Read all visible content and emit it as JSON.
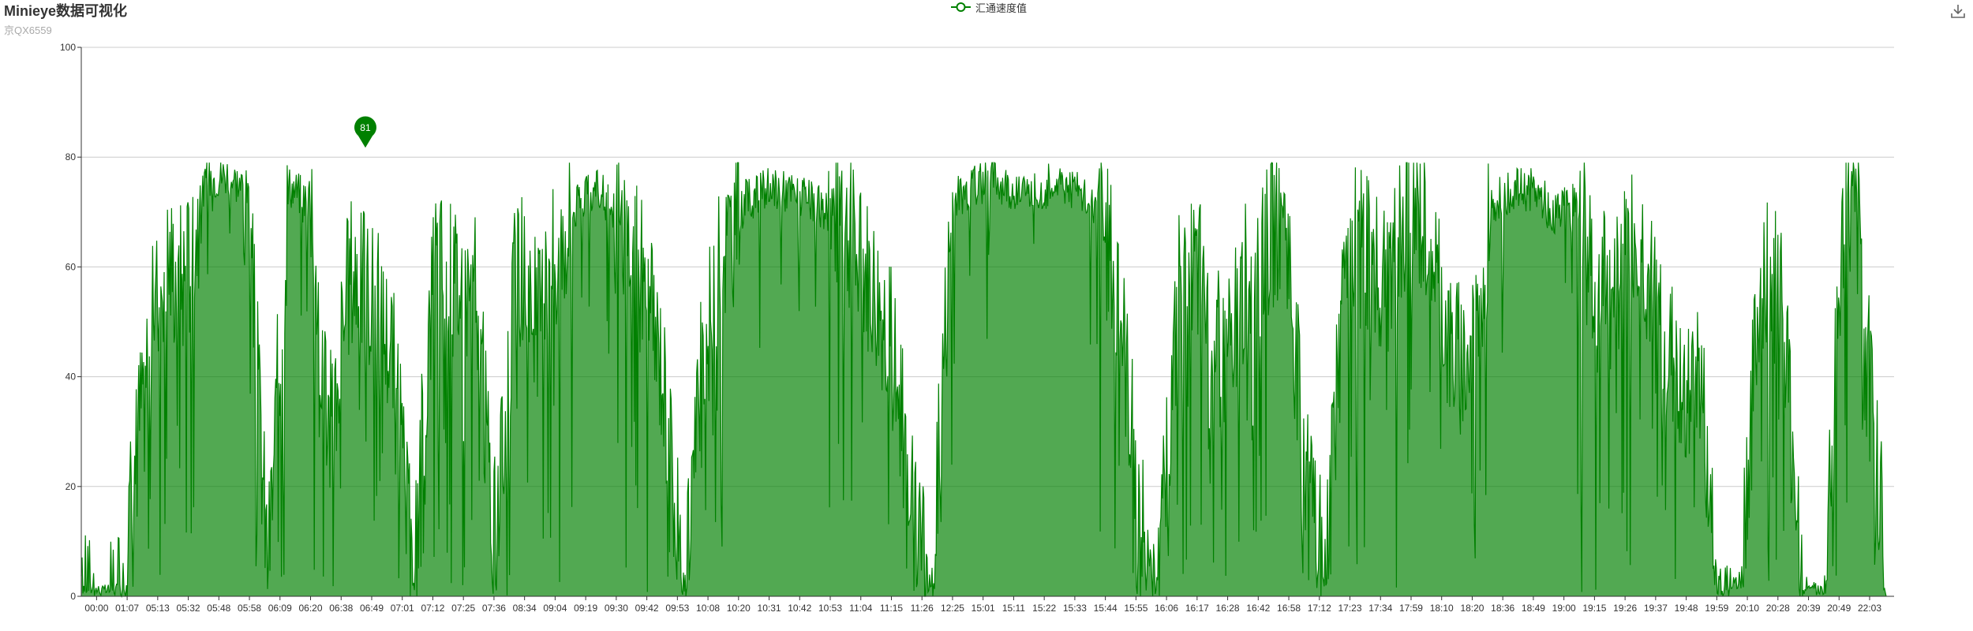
{
  "title": "Minieye数据可视化",
  "subtitle": "京QX6559",
  "legend": {
    "label": "汇通速度值",
    "icon": "circle-line-icon"
  },
  "toolbox": {
    "icon": "download-icon"
  },
  "colors": {
    "series": "#008000",
    "area": "rgba(0,128,0,0.68)",
    "axis": "#333333",
    "grid": "#cccccc",
    "text": "#333333",
    "subtitle": "#aaaaaa"
  },
  "chart_data": {
    "type": "area",
    "title": "Minieye数据可视化",
    "subtitle": "京QX6559",
    "xlabel": "",
    "ylabel": "",
    "ylim": [
      0,
      100
    ],
    "yticks": [
      0,
      20,
      40,
      60,
      80,
      100
    ],
    "grid": true,
    "legend_position": "top-center",
    "x_tick_labels": [
      "00:00",
      "01:07",
      "05:13",
      "05:32",
      "05:48",
      "05:58",
      "06:09",
      "06:20",
      "06:38",
      "06:49",
      "07:01",
      "07:12",
      "07:25",
      "07:36",
      "08:34",
      "09:04",
      "09:19",
      "09:30",
      "09:42",
      "09:53",
      "10:08",
      "10:20",
      "10:31",
      "10:42",
      "10:53",
      "11:04",
      "11:15",
      "11:26",
      "12:25",
      "15:01",
      "15:11",
      "15:22",
      "15:33",
      "15:44",
      "15:55",
      "16:06",
      "16:17",
      "16:28",
      "16:42",
      "16:58",
      "17:12",
      "17:23",
      "17:34",
      "17:59",
      "18:10",
      "18:20",
      "18:36",
      "18:49",
      "19:00",
      "19:15",
      "19:26",
      "19:37",
      "19:48",
      "19:59",
      "20:10",
      "20:28",
      "20:39",
      "20:49",
      "22:03"
    ],
    "series": [
      {
        "name": "汇通速度值",
        "note_profile": "approximate envelope of speed per tick interval",
        "values": [
          4,
          2,
          3,
          40,
          62,
          58,
          76,
          77,
          74,
          5,
          75,
          72,
          30,
          60,
          55,
          45,
          2,
          62,
          58,
          55,
          8,
          62,
          50,
          65,
          72,
          74,
          68,
          58,
          42,
          2,
          45,
          64,
          72,
          74,
          74,
          72,
          70,
          66,
          58,
          48,
          20,
          5,
          72,
          75,
          76,
          74,
          73,
          76,
          74,
          70,
          56,
          15,
          6,
          60,
          58,
          42,
          56,
          62,
          72,
          20,
          5,
          66,
          62,
          58,
          70,
          66,
          44,
          42,
          72,
          74,
          74,
          70,
          72,
          55,
          56,
          68,
          48,
          40,
          40,
          2,
          5,
          60,
          55,
          2,
          2,
          70,
          62,
          0
        ]
      }
    ],
    "marker": {
      "label": "81",
      "value": 81,
      "x_label": "06:49"
    }
  }
}
